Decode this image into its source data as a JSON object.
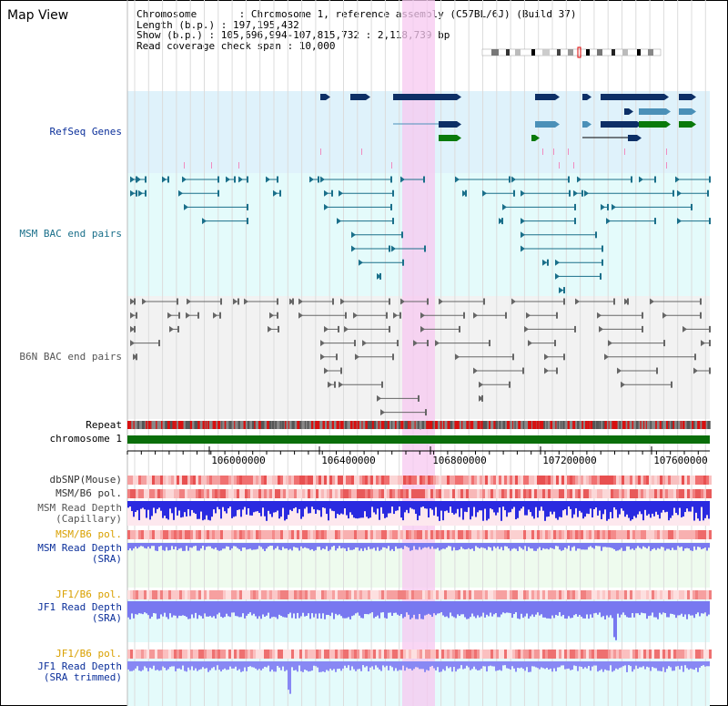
{
  "view": {
    "title": "Map View"
  },
  "info": {
    "chromosome": "Chromosome       : Chromosome 1, reference assembly (C57BL/6J) (Build 37)",
    "length": "Length (b.p.) : 197,195,432",
    "show": "Show (b.p.) : 105,696,994-107,815,732 : 2,118,739 bp",
    "coverage": "Read coverage check span : 10,000"
  },
  "tracks": {
    "refseq": "RefSeq Genes",
    "msm_bac": "MSM BAC end pairs",
    "b6n_bac": "B6N BAC end pairs",
    "repeat": "Repeat",
    "chromosome": "chromosome 1",
    "dbsnp": "dbSNP(Mouse)",
    "msm_b6_pol_1": "MSM/B6 pol.",
    "msm_depth_cap_1": "MSM Read Depth",
    "msm_depth_cap_2": "(Capillary)",
    "msm_b6_pol_2": "MSM/B6 pol.",
    "msm_depth_sra_1": "MSM Read Depth",
    "msm_depth_sra_2": "(SRA)",
    "jf1_b6_pol_1": "JF1/B6 pol.",
    "jf1_depth_sra_1": "JF1 Read Depth",
    "jf1_depth_sra_2": "(SRA)",
    "jf1_b6_pol_2": "JF1/B6 pol.",
    "jf1_depth_trim_1": "JF1 Read Depth",
    "jf1_depth_trim_2": "(SRA trimmed)"
  },
  "axis": {
    "ticks": [
      "106000000",
      "106400000",
      "106800000",
      "107200000",
      "107600000"
    ]
  },
  "colors": {
    "refseq_bg": "#dff2fb",
    "gene_dark": "#0d2f66",
    "gene_mid": "#4a90b8",
    "gene_green": "#0a7a0a",
    "msm_bac": "#1a6f8a",
    "b6n_bac": "#666666",
    "highlight": "#f7c8f0"
  }
}
